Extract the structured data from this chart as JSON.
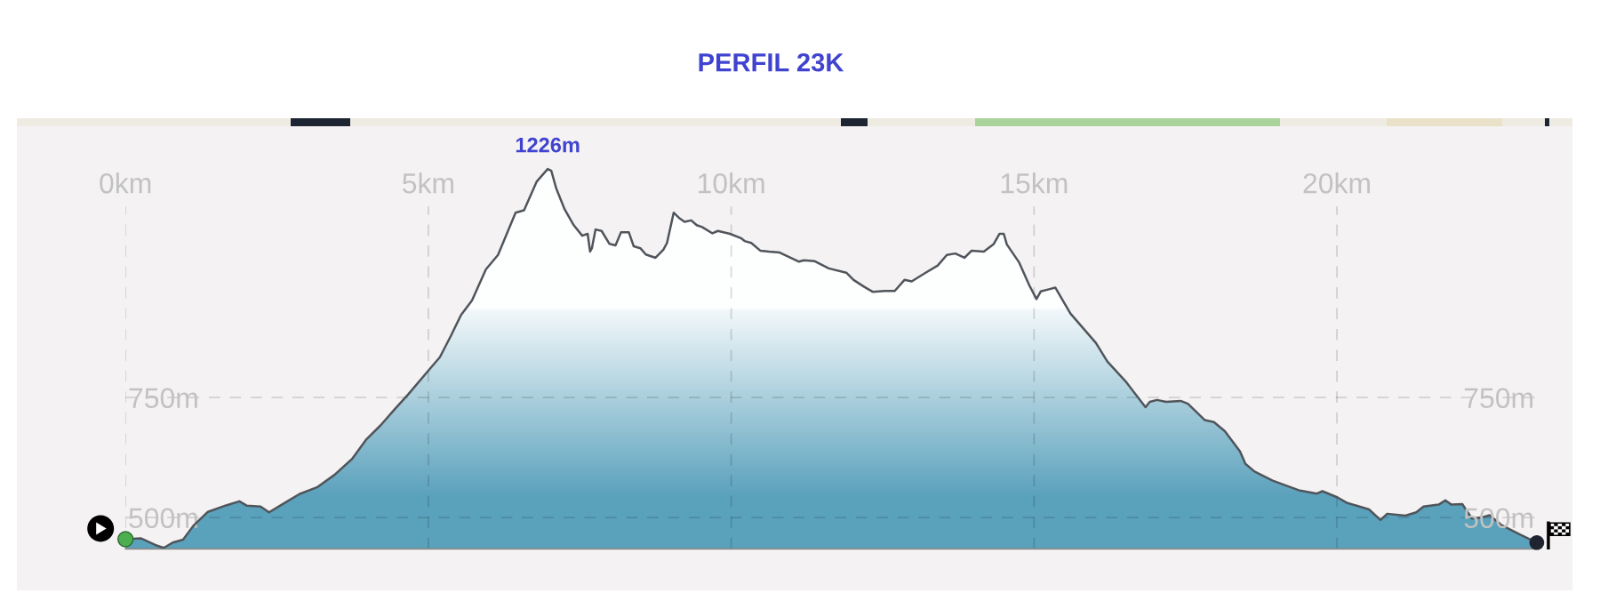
{
  "chart_data": {
    "type": "area",
    "title": "PERFIL 23K",
    "x": [
      0,
      0.25,
      0.49,
      0.63,
      0.78,
      0.95,
      1.12,
      1.36,
      1.65,
      1.88,
      2.0,
      2.23,
      2.37,
      2.58,
      2.87,
      3.16,
      3.45,
      3.74,
      3.97,
      4.21,
      4.44,
      4.67,
      5.02,
      5.19,
      5.37,
      5.54,
      5.72,
      5.95,
      6.15,
      6.44,
      6.58,
      6.79,
      6.97,
      7.03,
      7.11,
      7.25,
      7.4,
      7.54,
      7.63,
      7.67,
      7.7,
      7.76,
      7.86,
      7.99,
      8.09,
      8.18,
      8.31,
      8.39,
      8.5,
      8.59,
      8.75,
      8.88,
      8.94,
      9.05,
      9.14,
      9.23,
      9.34,
      9.43,
      9.52,
      9.69,
      9.78,
      9.98,
      10.16,
      10.22,
      10.33,
      10.48,
      10.62,
      10.8,
      11.12,
      11.2,
      11.38,
      11.61,
      11.9,
      12.02,
      12.19,
      12.34,
      12.54,
      12.7,
      12.86,
      12.98,
      13.21,
      13.41,
      13.56,
      13.7,
      13.85,
      13.97,
      14.17,
      14.33,
      14.43,
      14.5,
      14.55,
      14.75,
      14.92,
      15.04,
      15.11,
      15.26,
      15.35,
      15.6,
      16.02,
      16.21,
      16.51,
      16.84,
      16.91,
      17.03,
      17.18,
      17.42,
      17.54,
      17.82,
      17.97,
      18.15,
      18.4,
      18.49,
      18.64,
      18.94,
      19.37,
      19.67,
      19.76,
      20.01,
      20.16,
      20.53,
      20.72,
      20.83,
      21.13,
      21.31,
      21.43,
      21.68,
      21.79,
      21.89,
      22.07,
      22.23,
      22.41,
      22.52,
      22.71,
      23.02,
      23.3
    ],
    "series": [
      {
        "color": "#5aa1bc",
        "values": [
          455,
          457,
          443,
          437,
          448,
          454,
          483,
          512,
          525,
          534,
          525,
          523,
          511,
          527,
          549,
          563,
          589,
          622,
          662,
          692,
          725,
          757,
          809,
          834,
          878,
          922,
          952,
          1017,
          1047,
          1135,
          1140,
          1200,
          1226,
          1222,
          1186,
          1142,
          1109,
          1087,
          1091,
          1054,
          1061,
          1100,
          1097,
          1070,
          1067,
          1094,
          1094,
          1065,
          1061,
          1048,
          1041,
          1058,
          1072,
          1135,
          1124,
          1116,
          1119,
          1109,
          1105,
          1092,
          1097,
          1091,
          1082,
          1076,
          1072,
          1056,
          1054,
          1052,
          1033,
          1036,
          1034,
          1019,
          1010,
          995,
          981,
          970,
          972,
          972,
          995,
          992,
          1010,
          1025,
          1047,
          1050,
          1041,
          1056,
          1054,
          1069,
          1091,
          1091,
          1069,
          1032,
          984,
          955,
          971,
          976,
          979,
          925,
          864,
          825,
          784,
          730,
          741,
          745,
          741,
          743,
          737,
          703,
          699,
          680,
          638,
          612,
          596,
          577,
          557,
          550,
          555,
          542,
          531,
          517,
          495,
          508,
          504,
          511,
          523,
          527,
          536,
          527,
          528,
          498,
          501,
          505,
          485,
          465,
          448
        ]
      }
    ],
    "xlim": [
      0,
      23.3
    ],
    "xticks": [
      {
        "value": 0,
        "label": "0km"
      },
      {
        "value": 5,
        "label": "5km"
      },
      {
        "value": 10,
        "label": "10km"
      },
      {
        "value": 15,
        "label": "15km"
      },
      {
        "value": 20,
        "label": "20km"
      }
    ],
    "ylim": [
      435,
      1310
    ],
    "yticks": [
      {
        "value": 500,
        "label": "500m"
      },
      {
        "value": 750,
        "label": "750m"
      }
    ],
    "y2lim": [
      435,
      1310
    ],
    "y2ticks": [
      {
        "value": 500,
        "label": "500m"
      },
      {
        "value": 750,
        "label": "750m"
      }
    ],
    "grid": true,
    "annotations": [
      {
        "text": "1226m",
        "x": 6.97,
        "y": 1226
      }
    ]
  }
}
